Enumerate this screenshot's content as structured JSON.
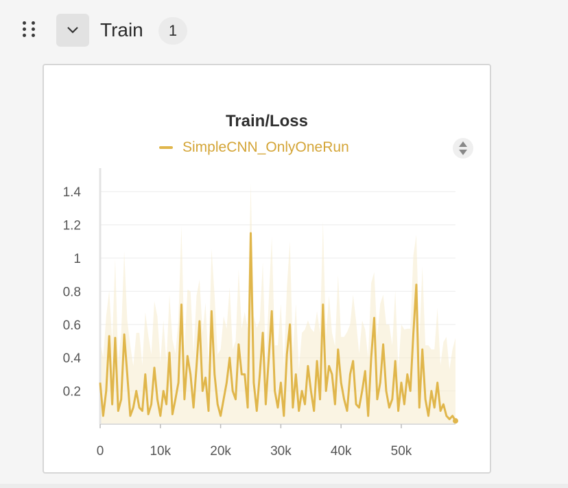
{
  "panel": {
    "section_title": "Train",
    "run_count": "1"
  },
  "icons": {
    "drag": "drag-handle-icon",
    "collapse": "chevron-down-icon",
    "sort": "sort-icon"
  },
  "colors": {
    "series": "#e0b64b",
    "series_faint": "#f6ecd0",
    "legend_text": "#d4a537"
  },
  "chart_data": {
    "type": "line",
    "title": "Train/Loss",
    "xlabel": "",
    "ylabel": "",
    "xlim": [
      0,
      59000
    ],
    "ylim": [
      0,
      1.5
    ],
    "x_ticks": [
      "0",
      "10k",
      "20k",
      "30k",
      "40k",
      "50k"
    ],
    "x_tick_values": [
      0,
      10000,
      20000,
      30000,
      40000,
      50000
    ],
    "y_ticks": [
      "0.2",
      "0.4",
      "0.6",
      "0.8",
      "1",
      "1.2",
      "1.4"
    ],
    "y_tick_values": [
      0.2,
      0.4,
      0.6,
      0.8,
      1.0,
      1.2,
      1.4
    ],
    "grid": true,
    "legend": "top-left",
    "series": [
      {
        "name": "SimpleCNN_OnlyOneRun",
        "x_step": 500,
        "values": [
          0.25,
          0.05,
          0.2,
          0.53,
          0.12,
          0.52,
          0.08,
          0.15,
          0.54,
          0.3,
          0.05,
          0.1,
          0.2,
          0.1,
          0.08,
          0.3,
          0.06,
          0.12,
          0.34,
          0.15,
          0.05,
          0.2,
          0.12,
          0.43,
          0.06,
          0.15,
          0.25,
          0.72,
          0.15,
          0.41,
          0.3,
          0.1,
          0.35,
          0.62,
          0.2,
          0.28,
          0.08,
          0.68,
          0.3,
          0.12,
          0.05,
          0.15,
          0.25,
          0.4,
          0.2,
          0.15,
          0.48,
          0.3,
          0.3,
          0.1,
          1.15,
          0.25,
          0.08,
          0.3,
          0.55,
          0.12,
          0.4,
          0.68,
          0.2,
          0.1,
          0.25,
          0.05,
          0.42,
          0.6,
          0.1,
          0.3,
          0.08,
          0.2,
          0.12,
          0.35,
          0.2,
          0.08,
          0.38,
          0.15,
          0.72,
          0.2,
          0.35,
          0.3,
          0.12,
          0.45,
          0.25,
          0.15,
          0.08,
          0.3,
          0.38,
          0.12,
          0.1,
          0.2,
          0.32,
          0.05,
          0.4,
          0.64,
          0.15,
          0.25,
          0.48,
          0.2,
          0.1,
          0.15,
          0.38,
          0.08,
          0.25,
          0.12,
          0.3,
          0.2,
          0.54,
          0.84,
          0.1,
          0.45,
          0.15,
          0.05,
          0.2,
          0.1,
          0.25,
          0.08,
          0.12,
          0.05,
          0.03,
          0.05,
          0.02
        ]
      }
    ]
  }
}
